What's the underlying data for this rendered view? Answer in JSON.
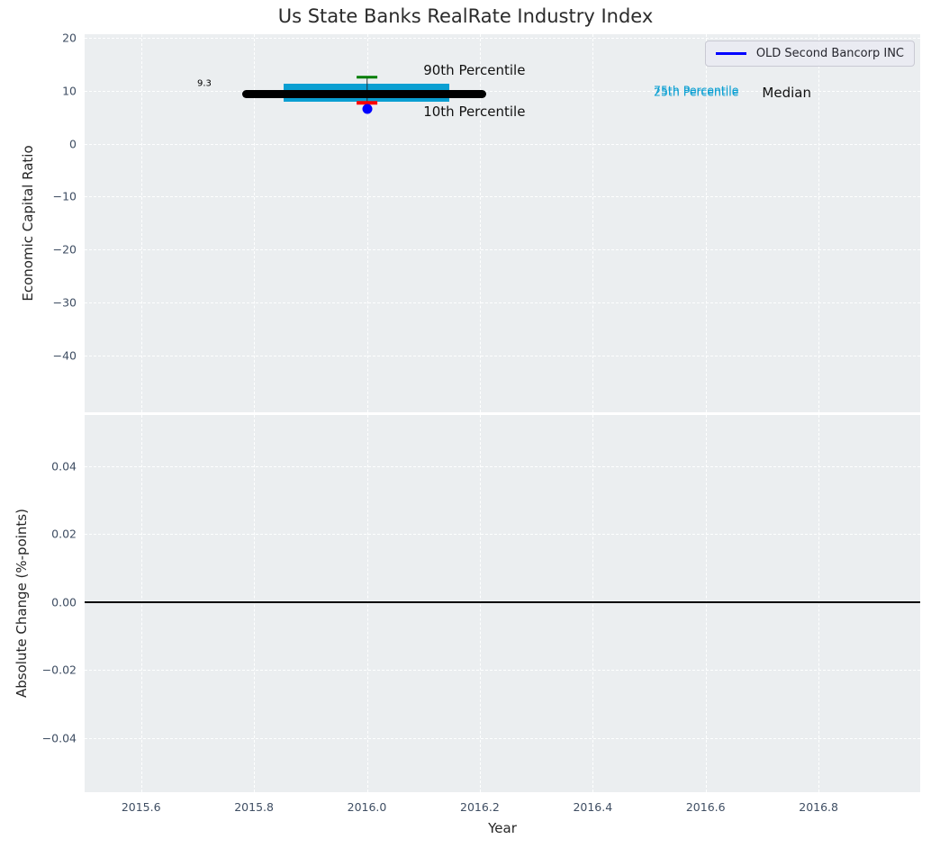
{
  "title": "Us State Banks RealRate Industry Index",
  "legend": {
    "label": "OLD Second Bancorp INC"
  },
  "colors": {
    "figure_bg": "#ffffff",
    "plot_bg": "#ebeef0",
    "grid": "#ffffff",
    "tick_label": "#3f4e63",
    "axis_label": "#262626",
    "title": "#2b2b2b",
    "iqr_box": "#0a9fd2",
    "median_line": "#000000",
    "whisker": "#25313a",
    "p90_cap": "#007d00",
    "p10_cap": "#ff0000",
    "company": "#0000ff",
    "zero_line": "#000000"
  },
  "chart_data": [
    {
      "type": "box",
      "title": "Us State Banks RealRate Industry Index",
      "ylabel": "Economic Capital Ratio",
      "xlim": [
        2015.5,
        2016.98
      ],
      "ylim": [
        -50.8,
        20.7
      ],
      "grid": true,
      "legend_position": "upper right",
      "show_x_tick_labels": false,
      "xticks": [
        {
          "value": 2015.6,
          "label": "2015.6"
        },
        {
          "value": 2015.8,
          "label": "2015.8"
        },
        {
          "value": 2016.0,
          "label": "2016.0"
        },
        {
          "value": 2016.2,
          "label": "2016.2"
        },
        {
          "value": 2016.4,
          "label": "2016.4"
        },
        {
          "value": 2016.6,
          "label": "2016.6"
        },
        {
          "value": 2016.8,
          "label": "2016.8"
        }
      ],
      "yticks": [
        {
          "value": 20,
          "label": "20"
        },
        {
          "value": 10,
          "label": "10"
        },
        {
          "value": 0,
          "label": "0"
        },
        {
          "value": -10,
          "label": "−10"
        },
        {
          "value": -20,
          "label": "−20"
        },
        {
          "value": -30,
          "label": "−30"
        },
        {
          "value": -40,
          "label": "−40"
        }
      ],
      "box": {
        "year": 2016.0,
        "p90": 12.6,
        "p75": 11.3,
        "median": 9.3,
        "p25": 8.0,
        "p10": 7.7,
        "median_label": "9.3",
        "box_x": [
          2015.852,
          2016.146
        ],
        "median_x": [
          2015.785,
          2016.205
        ],
        "cap_half_width": 0.019
      },
      "company_point": {
        "name": "OLD Second Bancorp INC",
        "x": 2016.0,
        "y": 6.6
      },
      "annotations": [
        {
          "text": "9.3",
          "x": 2015.712,
          "y": 11.3,
          "size": 10,
          "color": "#000000",
          "align": "center"
        },
        {
          "text": "90th Percentile",
          "x": 2016.1,
          "y": 13.9,
          "size": 15,
          "color": "#111111",
          "align": "left"
        },
        {
          "text": "10th Percentile",
          "x": 2016.1,
          "y": 6.0,
          "size": 15,
          "color": "#111111",
          "align": "left"
        },
        {
          "text": "75th Percentile",
          "x": 2016.508,
          "y": 10.1,
          "size": 12.5,
          "color": "#0a9fd2",
          "align": "left"
        },
        {
          "text": "25th Percentile",
          "x": 2016.508,
          "y": 9.75,
          "size": 12.5,
          "color": "#0a9fd2",
          "align": "left"
        },
        {
          "text": "Median",
          "x": 2016.7,
          "y": 9.55,
          "size": 15,
          "color": "#111111",
          "align": "left"
        }
      ]
    },
    {
      "type": "line",
      "ylabel": "Absolute Change (%-points)",
      "xlabel": "Year",
      "xlim": [
        2015.5,
        2016.98
      ],
      "ylim": [
        -0.056,
        0.055
      ],
      "grid": true,
      "show_x_tick_labels": true,
      "xticks": [
        {
          "value": 2015.6,
          "label": "2015.6"
        },
        {
          "value": 2015.8,
          "label": "2015.8"
        },
        {
          "value": 2016.0,
          "label": "2016.0"
        },
        {
          "value": 2016.2,
          "label": "2016.2"
        },
        {
          "value": 2016.4,
          "label": "2016.4"
        },
        {
          "value": 2016.6,
          "label": "2016.6"
        },
        {
          "value": 2016.8,
          "label": "2016.8"
        }
      ],
      "yticks": [
        {
          "value": 0.04,
          "label": "0.04"
        },
        {
          "value": 0.02,
          "label": "0.02"
        },
        {
          "value": 0.0,
          "label": "0.00"
        },
        {
          "value": -0.02,
          "label": "−0.02"
        },
        {
          "value": -0.04,
          "label": "−0.04"
        }
      ],
      "zero_line": 0.0
    }
  ]
}
